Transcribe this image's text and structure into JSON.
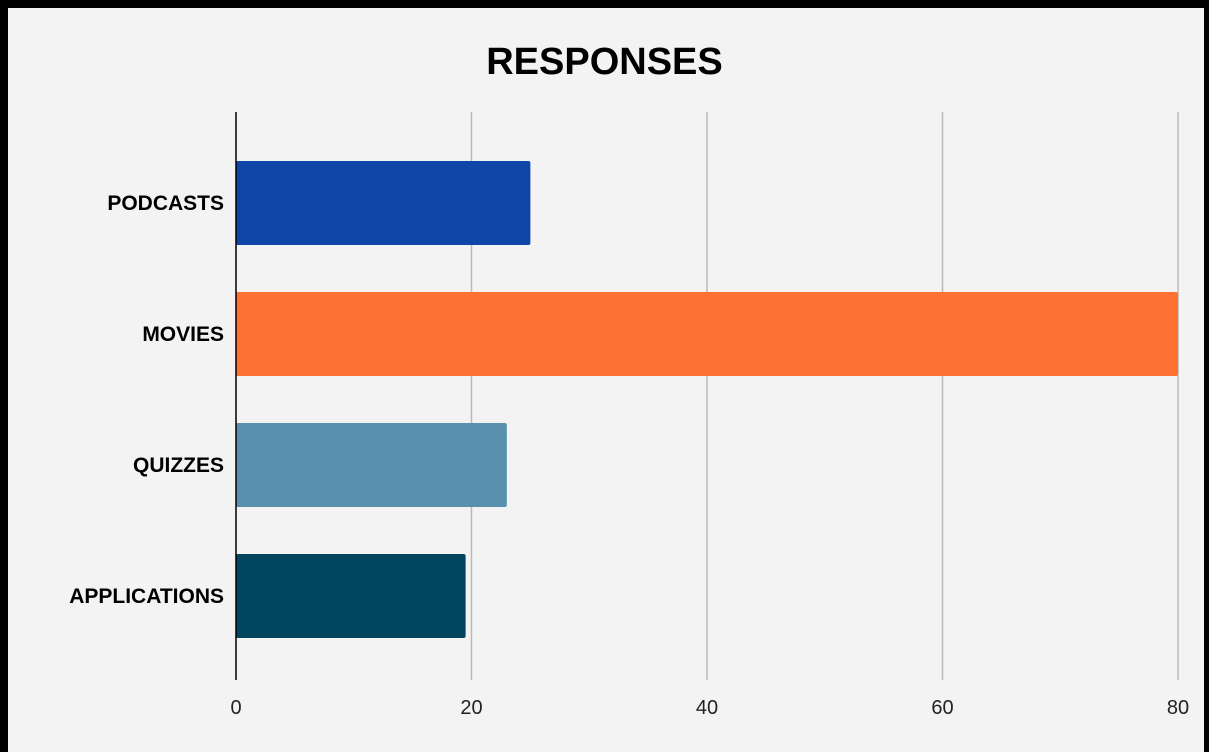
{
  "chart_data": {
    "type": "bar",
    "orientation": "horizontal",
    "title": "RESPONSES",
    "xlabel": "",
    "ylabel": "",
    "categories": [
      "PODCASTS",
      "MOVIES",
      "QUIZZES",
      "APPLICATIONS"
    ],
    "values": [
      25,
      80,
      23,
      19.5
    ],
    "colors": [
      "#0f46a8",
      "#ff7033",
      "#5990ad",
      "#02455e"
    ],
    "xlim": [
      0,
      80
    ],
    "xticks": [
      0,
      20,
      40,
      60,
      80
    ],
    "grid": "vertical",
    "legend": "none"
  }
}
